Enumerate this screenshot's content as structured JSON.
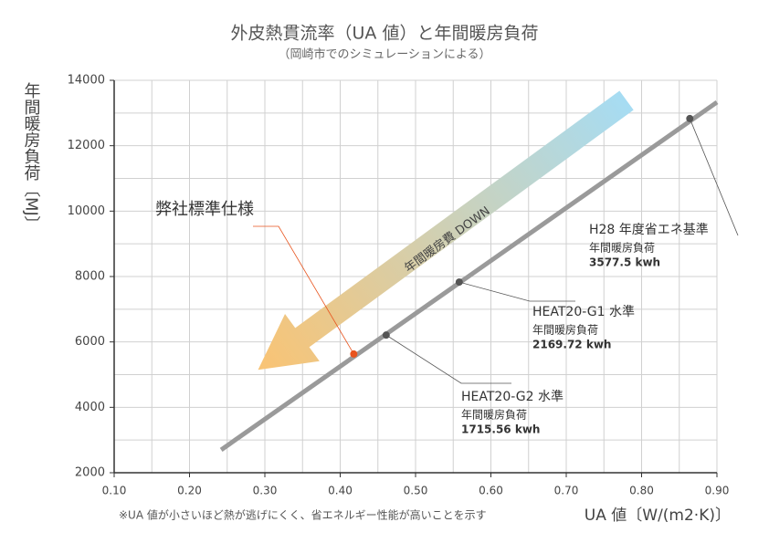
{
  "chart_data": {
    "type": "line",
    "title": "外皮熱貫流率（UA 値）と年間暖房負荷",
    "subtitle": "（岡崎市でのシミュレーションによる）",
    "y_label": "年間暖房負荷〔MJ〕",
    "x_label": "UA 値〔W/(m2·K)〕",
    "footnote": "※UA 値が小さいほど熱が逃げにくく、省エネルギー性能が高いことを示す",
    "arrow_text": "年間暖房費 DOWN",
    "xlim": [
      0.1,
      0.9
    ],
    "ylim": [
      2000,
      14000
    ],
    "xticks": [
      {
        "value": 0.1,
        "label": "0.10"
      },
      {
        "value": 0.2,
        "label": "0.20"
      },
      {
        "value": 0.3,
        "label": "0.30"
      },
      {
        "value": 0.4,
        "label": "0.40"
      },
      {
        "value": 0.5,
        "label": "0.50"
      },
      {
        "value": 0.6,
        "label": "0.60"
      },
      {
        "value": 0.7,
        "label": "0.70"
      },
      {
        "value": 0.8,
        "label": "0.80"
      },
      {
        "value": 0.9,
        "label": "0.90"
      }
    ],
    "yticks": [
      2000,
      4000,
      6000,
      8000,
      10000,
      12000,
      14000
    ],
    "grid": true,
    "line": {
      "color": "#9a9a9a",
      "x": [
        0.242,
        0.9
      ],
      "y": [
        2700,
        13330
      ]
    },
    "points": [
      {
        "x": 0.418,
        "y": 5630,
        "color": "#e8541e",
        "labels": [
          "弊社標準仕様"
        ]
      },
      {
        "x": 0.461,
        "y": 6210,
        "color": "#555555",
        "labels": [
          "HEAT20-G2 水準",
          "年間暖房負荷",
          "1715.56 kwh"
        ]
      },
      {
        "x": 0.558,
        "y": 7830,
        "color": "#555555",
        "labels": [
          "HEAT20-G1 水準",
          "年間暖房負荷",
          "2169.72 kwh"
        ]
      },
      {
        "x": 0.864,
        "y": 12830,
        "color": "#555555",
        "labels": [
          "H28 年度省エネ基準",
          "年間暖房負荷",
          "3577.5 kwh"
        ]
      }
    ]
  }
}
